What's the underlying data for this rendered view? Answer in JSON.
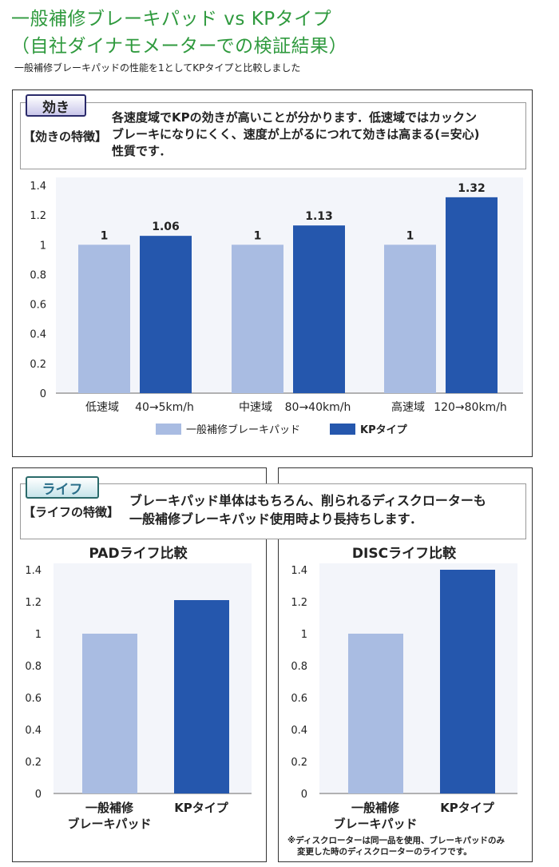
{
  "header": {
    "title_line1": "一般補修ブレーキパッド vs KPタイプ",
    "title_line2": "（自社ダイナモメーターでの検証結果）",
    "subtitle": "一般補修ブレーキパッドの性能を1としてKPタイプと比較しました"
  },
  "effect_section": {
    "tag": "効き",
    "caption_key": "【効きの特徴】",
    "caption_lines": [
      "各速度域でKPの効きが高いことが分かります．低速域ではカックン",
      "ブレーキになりにくく、速度が上がるにつれて効きは高まる(=安心)",
      "性質です．"
    ]
  },
  "life_section": {
    "tag": "ライフ",
    "caption_key": "【ライフの特徴】",
    "caption_lines": [
      "ブレーキパッド単体はもちろん、削られるディスクローターも",
      "一般補修ブレーキパッド使用時より長持ちします．"
    ],
    "note_lines": [
      "※ディスクローターは同一品を使用、ブレーキパッドのみ",
      "変更した時のディスクローターのライフです。"
    ]
  },
  "colors": {
    "general": "#a9bce2",
    "kp": "#2557ad",
    "title": "#2f9a3e"
  },
  "chart_data": [
    {
      "type": "bar",
      "title": "",
      "categories": [
        {
          "zone": "低速域",
          "speed": "40→5km/h"
        },
        {
          "zone": "中速域",
          "speed": "80→40km/h"
        },
        {
          "zone": "高速域",
          "speed": "120→80km/h"
        }
      ],
      "series": [
        {
          "name": "一般補修ブレーキパッド",
          "values": [
            1,
            1,
            1
          ]
        },
        {
          "name": "KPタイプ",
          "values": [
            1.06,
            1.13,
            1.32
          ]
        }
      ],
      "data_labels": [
        [
          "1",
          "1",
          "1"
        ],
        [
          "1.06",
          "1.13",
          "1.32"
        ]
      ],
      "yticks": [
        "0",
        "0.2",
        "0.4",
        "0.6",
        "0.8",
        "1",
        "1.2",
        "1.4"
      ],
      "ylim": [
        0,
        1.4
      ],
      "legend": "bottom"
    },
    {
      "type": "bar",
      "title": "PADライフ比較",
      "categories": [
        [
          "一般補修",
          "ブレーキパッド"
        ],
        [
          "KPタイプ"
        ]
      ],
      "values": [
        1,
        1.21
      ],
      "yticks": [
        "0",
        "0.2",
        "0.4",
        "0.6",
        "0.8",
        "1",
        "1.2",
        "1.4"
      ],
      "ylim": [
        0,
        1.4
      ]
    },
    {
      "type": "bar",
      "title": "DISCライフ比較",
      "categories": [
        [
          "一般補修",
          "ブレーキパッド"
        ],
        [
          "KPタイプ"
        ]
      ],
      "values": [
        1,
        1.4
      ],
      "yticks": [
        "0",
        "0.2",
        "0.4",
        "0.6",
        "0.8",
        "1",
        "1.2",
        "1.4"
      ],
      "ylim": [
        0,
        1.4
      ]
    }
  ]
}
